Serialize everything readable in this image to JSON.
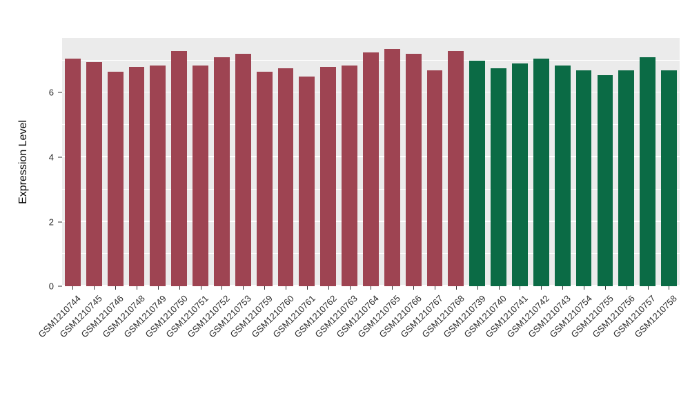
{
  "chart_data": {
    "type": "bar",
    "title": "",
    "xlabel": "",
    "ylabel": "Expression Level",
    "ylim": [
      0,
      7.7
    ],
    "yticks": [
      0,
      2,
      4,
      6
    ],
    "yticks_minor": [
      1,
      3,
      5,
      7
    ],
    "grid": true,
    "legend_position": "none",
    "panel_bg": "#EBEBEB",
    "grid_color": "#FFFFFF",
    "categories": [
      "GSM1210744",
      "GSM1210745",
      "GSM1210746",
      "GSM1210748",
      "GSM1210749",
      "GSM1210750",
      "GSM1210751",
      "GSM1210752",
      "GSM1210753",
      "GSM1210759",
      "GSM1210760",
      "GSM1210761",
      "GSM1210762",
      "GSM1210763",
      "GSM1210764",
      "GSM1210765",
      "GSM1210766",
      "GSM1210767",
      "GSM1210768",
      "GSM1210739",
      "GSM1210740",
      "GSM1210741",
      "GSM1210742",
      "GSM1210743",
      "GSM1210754",
      "GSM1210755",
      "GSM1210756",
      "GSM1210757",
      "GSM1210758"
    ],
    "values": [
      7.05,
      6.95,
      6.65,
      6.8,
      6.85,
      7.3,
      6.85,
      7.1,
      7.2,
      6.65,
      6.75,
      6.5,
      6.8,
      6.85,
      7.25,
      7.35,
      7.2,
      6.7,
      7.3,
      7.0,
      6.75,
      6.9,
      7.05,
      6.85,
      6.7,
      6.55,
      6.7,
      7.1,
      6.7
    ],
    "bar_groups": [
      "maroon",
      "maroon",
      "maroon",
      "maroon",
      "maroon",
      "maroon",
      "maroon",
      "maroon",
      "maroon",
      "maroon",
      "maroon",
      "maroon",
      "maroon",
      "maroon",
      "maroon",
      "maroon",
      "maroon",
      "maroon",
      "maroon",
      "green",
      "green",
      "green",
      "green",
      "green",
      "green",
      "green",
      "green",
      "green",
      "green"
    ],
    "group_colors": {
      "maroon": "#9E4452",
      "green": "#0B6B45"
    }
  }
}
